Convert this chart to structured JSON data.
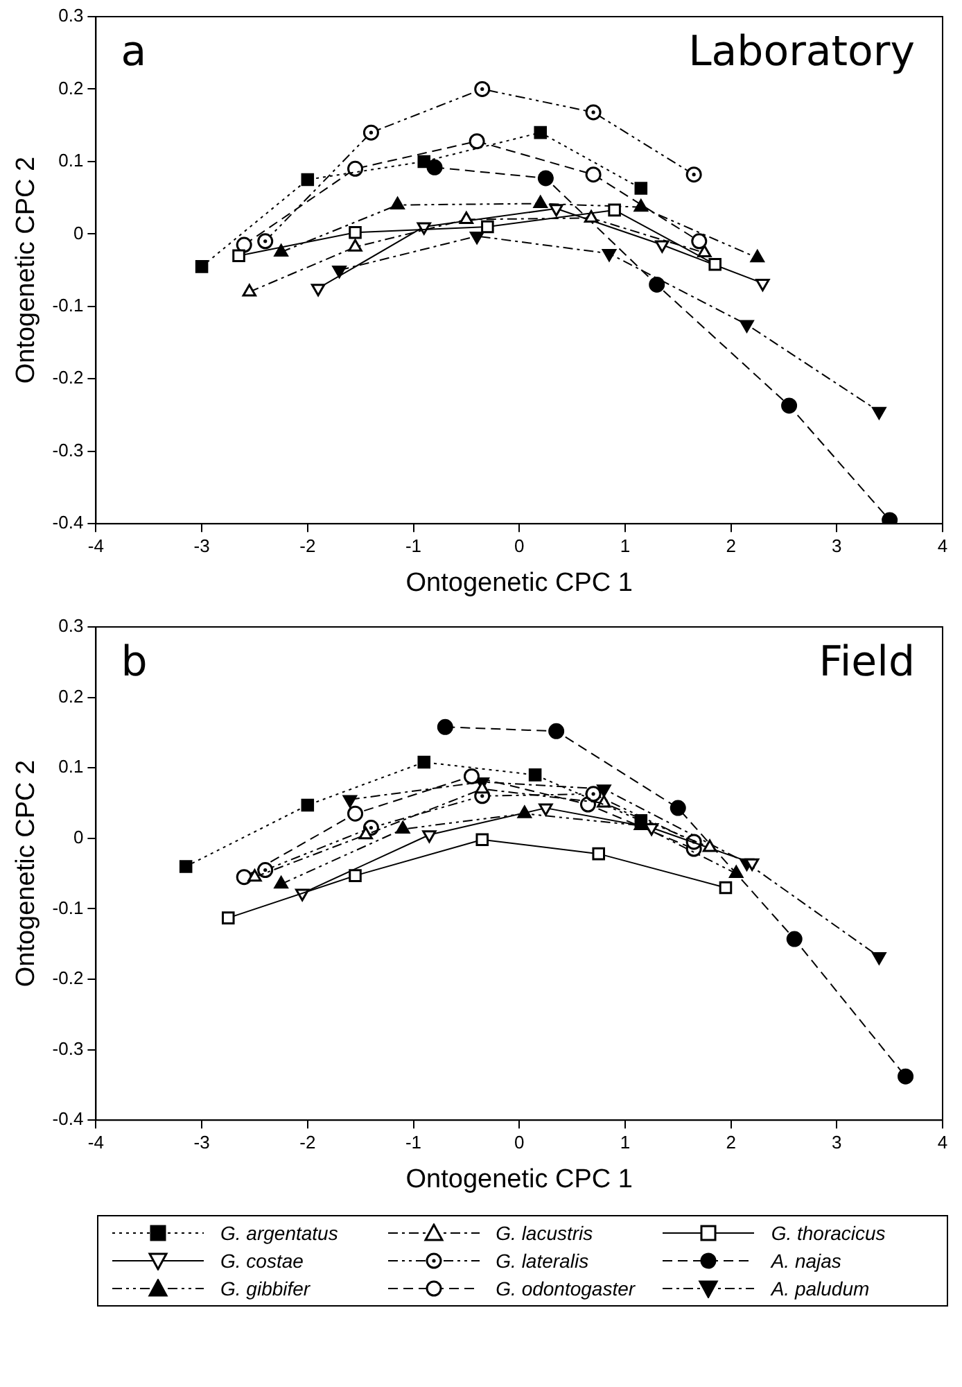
{
  "chart_data": [
    {
      "type": "line",
      "title": "Laboratory",
      "annotations": [
        "a"
      ],
      "xlabel": "Ontogenetic CPC 1",
      "ylabel": "Ontogenetic CPC 2",
      "xlim": [
        -4,
        4
      ],
      "xticks": [
        -4,
        -3,
        -2,
        -1,
        0,
        1,
        2,
        3,
        4
      ],
      "ylim": [
        -0.4,
        0.3
      ],
      "yticks": [
        -0.4,
        -0.3,
        -0.2,
        -0.1,
        0,
        0.1,
        0.2,
        0.3
      ],
      "grid": false,
      "legend": "bottom",
      "series": [
        {
          "name": "G. argentatus",
          "color": "#000000",
          "marker": "square",
          "line_style": "dotted",
          "x": [
            -3,
            -2,
            -0.9,
            0.2,
            1.15
          ],
          "values": [
            -0.045,
            0.075,
            0.1,
            0.14,
            0.063
          ]
        },
        {
          "name": "G. lacustris",
          "color": "#000000",
          "marker": "triangle-open",
          "line_style": "dashdot",
          "x": [
            -2.55,
            -1.55,
            -0.5,
            0.68,
            1.75
          ],
          "values": [
            -0.08,
            -0.018,
            0.02,
            0.022,
            -0.026
          ]
        },
        {
          "name": "G. thoracicus",
          "color": "#000000",
          "marker": "square-open",
          "line_style": "solid",
          "x": [
            -2.65,
            -1.55,
            -0.3,
            0.9,
            1.85
          ],
          "values": [
            -0.03,
            0.002,
            0.01,
            0.033,
            -0.042
          ]
        },
        {
          "name": "G. costae",
          "color": "#000000",
          "marker": "triangle-down-open",
          "line_style": "solid",
          "x": [
            -1.9,
            -0.9,
            0.35,
            1.35,
            2.3
          ],
          "values": [
            -0.075,
            0.01,
            0.035,
            -0.015,
            -0.068
          ]
        },
        {
          "name": "G. lateralis",
          "color": "#000000",
          "marker": "circle-dot",
          "line_style": "dashdotdot",
          "x": [
            -2.4,
            -1.4,
            -0.35,
            0.7,
            1.65
          ],
          "values": [
            -0.01,
            0.14,
            0.2,
            0.168,
            0.082
          ]
        },
        {
          "name": "A. najas",
          "color": "#000000",
          "marker": "circle",
          "line_style": "dashed",
          "x": [
            -0.8,
            0.25,
            1.3,
            2.55,
            3.5
          ],
          "values": [
            0.092,
            0.077,
            -0.07,
            -0.237,
            -0.395
          ]
        },
        {
          "name": "G. gibbifer",
          "color": "#000000",
          "marker": "triangle",
          "line_style": "dashdotdot",
          "x": [
            -2.25,
            -1.15,
            0.2,
            1.15,
            2.25
          ],
          "values": [
            -0.025,
            0.04,
            0.042,
            0.037,
            -0.033
          ]
        },
        {
          "name": "G. odontogaster",
          "color": "#000000",
          "marker": "circle-open",
          "line_style": "dashed",
          "x": [
            -2.6,
            -1.55,
            -0.4,
            0.7,
            1.7
          ],
          "values": [
            -0.015,
            0.09,
            0.128,
            0.082,
            -0.01
          ]
        },
        {
          "name": "A. paludum",
          "color": "#000000",
          "marker": "triangle-down",
          "line_style": "dashdot",
          "x": [
            -1.7,
            -0.4,
            0.85,
            2.15,
            3.4
          ],
          "values": [
            -0.05,
            -0.003,
            -0.027,
            -0.125,
            -0.245
          ]
        }
      ]
    },
    {
      "type": "line",
      "title": "Field",
      "annotations": [
        "b"
      ],
      "xlabel": "Ontogenetic CPC 1",
      "ylabel": "Ontogenetic CPC 2",
      "xlim": [
        -4,
        4
      ],
      "xticks": [
        -4,
        -3,
        -2,
        -1,
        0,
        1,
        2,
        3,
        4
      ],
      "ylim": [
        -0.4,
        0.3
      ],
      "yticks": [
        -0.4,
        -0.3,
        -0.2,
        -0.1,
        0,
        0.1,
        0.2,
        0.3
      ],
      "grid": false,
      "series": [
        {
          "color": "#000000",
          "marker": "square",
          "line_style": "dotted",
          "x": [
            -3.15,
            -2,
            -0.9,
            0.15,
            1.15
          ],
          "values": [
            -0.04,
            0.047,
            0.108,
            0.09,
            0.025
          ]
        },
        {
          "color": "#000000",
          "marker": "triangle-open",
          "line_style": "dashdot",
          "x": [
            -2.5,
            -1.45,
            -0.35,
            0.8,
            1.8
          ],
          "values": [
            -0.055,
            0.005,
            0.07,
            0.05,
            -0.013
          ]
        },
        {
          "color": "#000000",
          "marker": "square-open",
          "line_style": "solid",
          "x": [
            -2.75,
            -1.55,
            -0.35,
            0.75,
            1.95
          ],
          "values": [
            -0.113,
            -0.053,
            -0.002,
            -0.022,
            -0.07
          ]
        },
        {
          "color": "#000000",
          "marker": "triangle-down-open",
          "line_style": "solid",
          "x": [
            -2.05,
            -0.85,
            0.25,
            1.25,
            2.2
          ],
          "values": [
            -0.078,
            0.005,
            0.043,
            0.015,
            -0.035
          ]
        },
        {
          "color": "#000000",
          "marker": "circle-dot",
          "line_style": "dashdotdot",
          "x": [
            -2.4,
            -1.4,
            -0.35,
            0.7,
            1.65
          ],
          "values": [
            -0.045,
            0.015,
            0.06,
            0.063,
            -0.005
          ]
        },
        {
          "color": "#000000",
          "marker": "circle",
          "line_style": "dashed",
          "x": [
            -0.7,
            0.35,
            1.5,
            2.6,
            3.65
          ],
          "values": [
            0.158,
            0.152,
            0.043,
            -0.143,
            -0.338
          ]
        },
        {
          "color": "#000000",
          "marker": "triangle",
          "line_style": "dashdotdot",
          "x": [
            -2.25,
            -1.1,
            0.05,
            1.15,
            2.05
          ],
          "values": [
            -0.065,
            0.013,
            0.035,
            0.018,
            -0.05
          ]
        },
        {
          "color": "#000000",
          "marker": "circle-open",
          "line_style": "dashed",
          "x": [
            -2.6,
            -1.55,
            -0.45,
            0.65,
            1.65
          ],
          "values": [
            -0.055,
            0.035,
            0.088,
            0.048,
            -0.015
          ]
        },
        {
          "color": "#000000",
          "marker": "triangle-down",
          "line_style": "dashdot",
          "x": [
            -1.6,
            -0.35,
            0.8,
            2.15,
            3.4
          ],
          "values": [
            0.055,
            0.08,
            0.07,
            -0.035,
            -0.168
          ]
        }
      ]
    }
  ]
}
